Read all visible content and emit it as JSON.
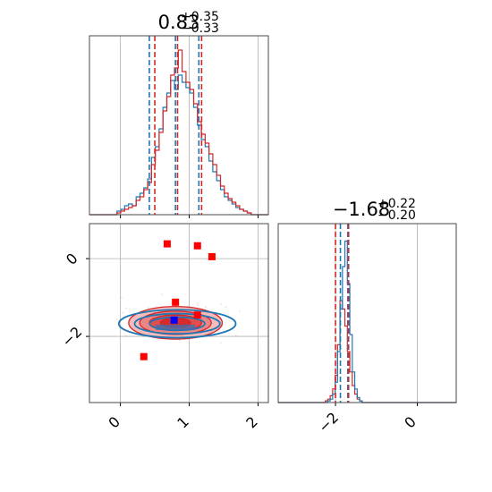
{
  "chart_data": [
    {
      "panel": "marginal-x",
      "type": "line",
      "title": {
        "value": "0.83",
        "plus": "+0.35",
        "minus": "−0.33"
      },
      "xlim": [
        -0.45,
        2.15
      ],
      "grid": true,
      "histogram_blue": [
        0.02,
        0.03,
        0.05,
        0.06,
        0.05,
        0.1,
        0.12,
        0.15,
        0.2,
        0.32,
        0.38,
        0.48,
        0.6,
        0.68,
        0.75,
        0.7,
        0.78,
        0.74,
        0.71,
        0.68,
        0.6,
        0.5,
        0.42,
        0.38,
        0.3,
        0.24,
        0.19,
        0.14,
        0.1,
        0.08,
        0.06,
        0.04,
        0.03,
        0.02,
        0.01
      ],
      "histogram_red": [
        0.01,
        0.02,
        0.03,
        0.04,
        0.05,
        0.08,
        0.1,
        0.14,
        0.18,
        0.28,
        0.36,
        0.46,
        0.58,
        0.66,
        0.78,
        0.82,
        0.92,
        0.8,
        0.74,
        0.7,
        0.62,
        0.52,
        0.45,
        0.4,
        0.34,
        0.28,
        0.22,
        0.16,
        0.12,
        0.09,
        0.07,
        0.05,
        0.03,
        0.02,
        0.01
      ],
      "hist_range": [
        -0.05,
        1.9
      ],
      "quantiles_blue": [
        0.42,
        1.14
      ],
      "quantiles_red": [
        0.5,
        1.18
      ],
      "median_blue": 0.8,
      "median_red": 0.83,
      "x_ticks": [
        0,
        1,
        2
      ]
    },
    {
      "panel": "marginal-y",
      "type": "line",
      "title": {
        "value": "−1.68",
        "plus": "+0.22",
        "minus": "−0.20"
      },
      "xlim": [
        -3.4,
        0.95
      ],
      "grid": true,
      "histogram_blue": [
        0.0,
        0.01,
        0.02,
        0.05,
        0.12,
        0.3,
        0.55,
        0.8,
        0.95,
        0.7,
        0.4,
        0.18,
        0.08,
        0.03,
        0.01
      ],
      "histogram_red": [
        0.01,
        0.02,
        0.04,
        0.08,
        0.16,
        0.34,
        0.6,
        0.55,
        0.45,
        0.3,
        0.18,
        0.1,
        0.05,
        0.02,
        0.01
      ],
      "hist_range": [
        -2.25,
        -1.35
      ],
      "quantiles_blue": [
        -1.88,
        -1.7
      ],
      "quantiles_red": [
        -2.0,
        -1.68
      ],
      "x_ticks": [
        -2,
        0
      ],
      "x_tick_labels": [
        "−2",
        "0"
      ]
    },
    {
      "panel": "joint",
      "type": "scatter",
      "xlim": [
        -0.45,
        2.15
      ],
      "ylim": [
        -3.7,
        0.9
      ],
      "grid": true,
      "contour_center": {
        "x": 0.8,
        "y": -1.65
      },
      "contour_red_radii": [
        [
          0.68,
          0.42
        ],
        [
          0.52,
          0.3
        ],
        [
          0.38,
          0.2
        ],
        [
          0.22,
          0.12
        ]
      ],
      "contour_blue_radii": [
        [
          0.85,
          0.36
        ],
        [
          0.62,
          0.26
        ],
        [
          0.4,
          0.17
        ]
      ],
      "red_markers": [
        {
          "x": 0.68,
          "y": 0.38
        },
        {
          "x": 1.12,
          "y": 0.33
        },
        {
          "x": 1.33,
          "y": 0.05
        },
        {
          "x": 0.8,
          "y": -1.12
        },
        {
          "x": 1.12,
          "y": -1.45
        },
        {
          "x": 0.34,
          "y": -2.52
        }
      ],
      "blue_markers": [
        {
          "x": 0.78,
          "y": -1.58
        }
      ],
      "x_ticks": [
        0,
        1,
        2
      ],
      "y_ticks": [
        0,
        -2
      ],
      "y_tick_labels": [
        "0",
        "−2"
      ]
    }
  ],
  "colors": {
    "blue": "#1f77b4",
    "red": "#d62728",
    "marker_red": "#ff0000",
    "marker_blue": "#0000ff"
  }
}
